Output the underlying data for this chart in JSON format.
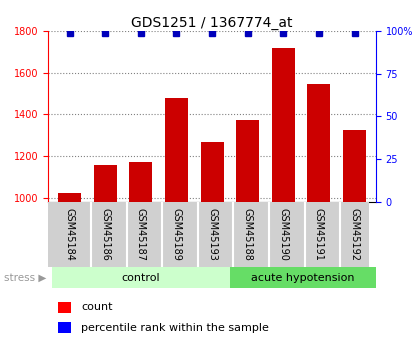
{
  "title": "GDS1251 / 1367774_at",
  "samples": [
    "GSM45184",
    "GSM45186",
    "GSM45187",
    "GSM45189",
    "GSM45193",
    "GSM45188",
    "GSM45190",
    "GSM45191",
    "GSM45192"
  ],
  "counts": [
    1020,
    1155,
    1170,
    1480,
    1265,
    1375,
    1720,
    1545,
    1325
  ],
  "percentiles": [
    99,
    99,
    99,
    99,
    99,
    99,
    99,
    99,
    99
  ],
  "groups": [
    {
      "label": "control",
      "start": 0,
      "end": 4
    },
    {
      "label": "acute hypotension",
      "start": 5,
      "end": 8
    }
  ],
  "bar_color": "#cc0000",
  "dot_color": "#0000bb",
  "ylim_left": [
    980,
    1800
  ],
  "ylim_right": [
    0,
    100
  ],
  "yticks_left": [
    1000,
    1200,
    1400,
    1600,
    1800
  ],
  "yticks_right": [
    0,
    25,
    50,
    75,
    100
  ],
  "ytick_labels_right": [
    "0",
    "25",
    "50",
    "75",
    "100%"
  ],
  "bg_color": "#ffffff",
  "gray_box_color": "#d0d0d0",
  "ctrl_color": "#ccffcc",
  "ah_color": "#66dd66",
  "stress_color": "#999999",
  "title_fontsize": 10,
  "tick_fontsize": 7,
  "label_fontsize": 7,
  "group_fontsize": 8,
  "legend_fontsize": 8
}
